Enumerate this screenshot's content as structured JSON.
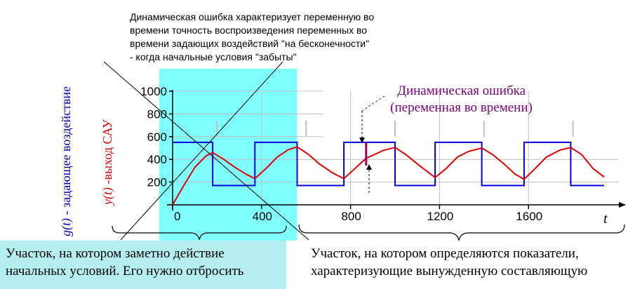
{
  "description_lines": [
    "Динамическая ошибка характеризует переменную во",
    "времени точность воспроизведения переменных во",
    "времени задающих воздействий \"на бесконечности\"",
    "- когда начальные условия \"забыты\""
  ],
  "callout_lines": [
    "Динамическая ошибка",
    "(переменная во времени)"
  ],
  "left_caption_lines": [
    "Участок, на котором заметно действие",
    "начальных условий. Его нужно отбросить"
  ],
  "right_caption_lines": [
    "Участок, на котором определяются показатели,",
    "характеризующие вынужденную составляющую"
  ],
  "ylabel_g": {
    "symbol": "g(t)",
    "text": " - задающее воздействие"
  },
  "ylabel_y": {
    "symbol": "y(t)",
    "text": " -выход САУ"
  },
  "colors": {
    "input": "#0000dd",
    "output": "#e00000",
    "highlight": "#80ffff",
    "error_marker": "#a00060",
    "callout_text": "#800080",
    "caption_bg": "#b4eef0",
    "grid": "#c0c0c0"
  },
  "chart_data": {
    "type": "line",
    "title": "",
    "xlabel": "t",
    "ylabel": "",
    "xlim": [
      0,
      1800
    ],
    "ylim": [
      0,
      1000
    ],
    "x_ticks": [
      0,
      400,
      800,
      1200,
      1600
    ],
    "y_ticks": [
      200,
      400,
      600,
      800,
      1000
    ],
    "x_tick_labels": [
      "0",
      "400",
      "800",
      "1200",
      "1600"
    ],
    "y_tick_labels": [
      "200",
      "400",
      "600",
      "800",
      "1000"
    ],
    "grid": true,
    "series": [
      {
        "name": "g(t)",
        "color": "#0000dd",
        "x": [
          0,
          180,
          180,
          370,
          370,
          560,
          560,
          770,
          770,
          1000,
          1000,
          1180,
          1180,
          1390,
          1390,
          1580,
          1580,
          1790,
          1790,
          1940
        ],
        "y": [
          550,
          550,
          170,
          170,
          550,
          550,
          170,
          170,
          550,
          550,
          170,
          170,
          550,
          550,
          170,
          170,
          550,
          550,
          170,
          170
        ]
      },
      {
        "name": "y(t)",
        "color": "#e00000",
        "x": [
          0,
          50,
          100,
          150,
          180,
          230,
          280,
          330,
          370,
          420,
          470,
          520,
          560,
          610,
          660,
          720,
          770,
          820,
          870,
          950,
          1000,
          1050,
          1100,
          1180,
          1230,
          1280,
          1330,
          1390,
          1440,
          1490,
          1540,
          1580,
          1630,
          1680,
          1740,
          1790,
          1840,
          1890,
          1940
        ],
        "y": [
          0,
          170,
          330,
          430,
          460,
          400,
          330,
          270,
          230,
          320,
          420,
          485,
          510,
          445,
          360,
          280,
          230,
          320,
          410,
          480,
          505,
          440,
          360,
          240,
          320,
          420,
          470,
          500,
          440,
          360,
          270,
          225,
          320,
          420,
          480,
          505,
          440,
          320,
          245
        ]
      }
    ],
    "annotations": [
      {
        "type": "highlight_region",
        "x_range": [
          -60,
          560
        ],
        "label": ""
      },
      {
        "type": "error_segment",
        "x": 870,
        "y_range": [
          345,
          550
        ]
      }
    ]
  }
}
